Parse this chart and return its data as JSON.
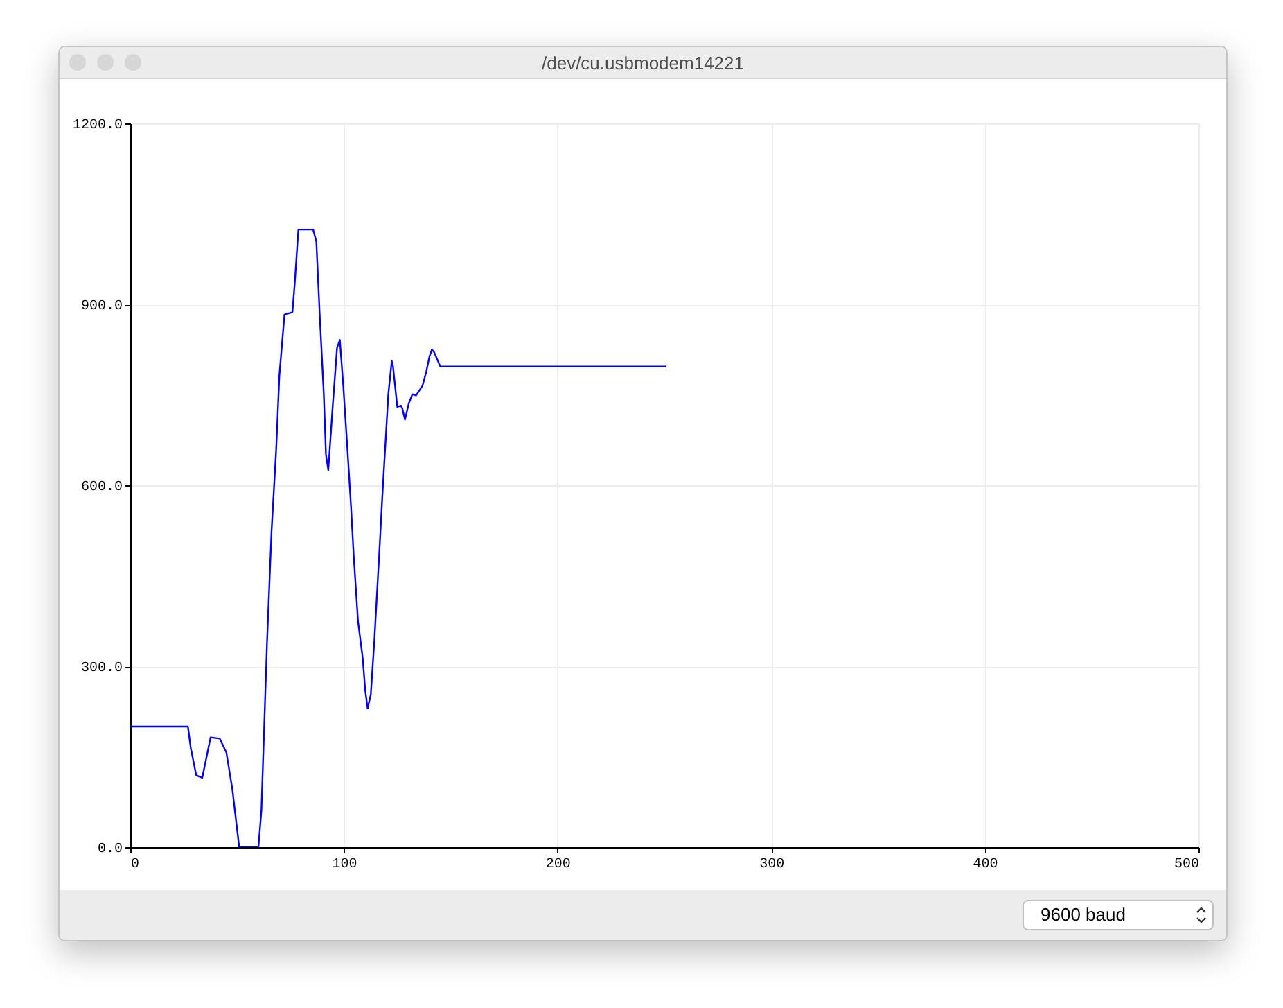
{
  "chart_data": {
    "type": "line",
    "title": "/dev/cu.usbmodem14221",
    "x": [
      0,
      27,
      28.3,
      30.9,
      33.7,
      37.6,
      41.9,
      45,
      47.8,
      51,
      60,
      61.4,
      64,
      66.1,
      68.3,
      69.8,
      72.2,
      75.9,
      77,
      78.7,
      85.6,
      87.1,
      88.8,
      90.6,
      91.6,
      92.7,
      94.7,
      96.8,
      98.1,
      99.7,
      101.4,
      103.3,
      104.6,
      106.6,
      108.8,
      110,
      111.1,
      112.6,
      114.3,
      116.5,
      118,
      119.8,
      120.8,
      122.4,
      123,
      125,
      126.7,
      127.3,
      128.6,
      130.4,
      132.1,
      133.8,
      136.8,
      138.6,
      140.1,
      141.2,
      142.2,
      145.1,
      251
    ],
    "series": [
      {
        "color": "#0000ff",
        "values": [
          200,
          200,
          165,
          119,
          115,
          182,
          180,
          157,
          96,
          0,
          0,
          61,
          337,
          521,
          659,
          782,
          883,
          887,
          935,
          1024,
          1024,
          1004,
          874,
          751,
          651,
          625,
          728,
          828,
          841,
          766,
          674,
          567,
          483,
          375,
          314,
          260,
          230,
          253,
          345,
          483,
          582,
          690,
          751,
          806,
          797,
          730,
          732,
          728,
          709,
          736,
          751,
          749,
          765,
          789,
          814,
          825,
          821,
          797,
          797
        ]
      }
    ],
    "xlim": [
      0,
      500
    ],
    "xticks": [
      0,
      100,
      200,
      300,
      400,
      500
    ],
    "ylim": [
      0,
      1200
    ],
    "yticks": [
      {
        "value": 0,
        "label": "0.0"
      },
      {
        "value": 300,
        "label": "300.0"
      },
      {
        "value": 600,
        "label": "600.0"
      },
      {
        "value": 900,
        "label": "900.0"
      },
      {
        "value": 1200,
        "label": "1200.0"
      }
    ],
    "grid": true,
    "annotations": [
      "9600 baud"
    ]
  }
}
